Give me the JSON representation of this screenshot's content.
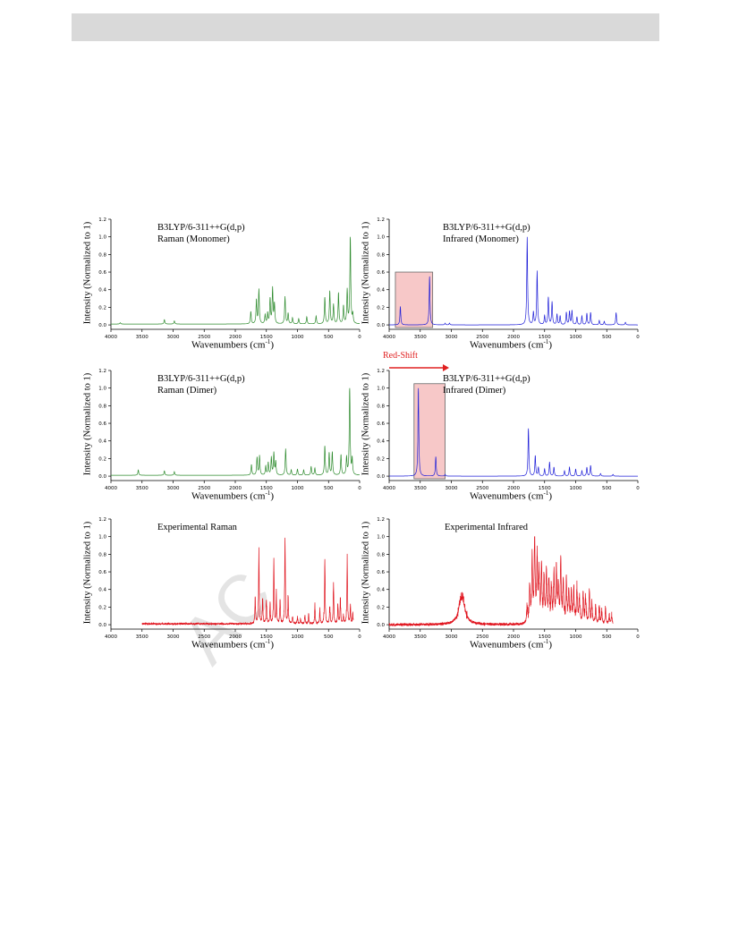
{
  "watermark": "AC",
  "chart_data": [
    {
      "id": "raman-monomer",
      "type": "line",
      "color": "#2e8b2e",
      "title_lines": [
        "B3LYP/6-311++G(d,p)",
        "Raman (Monomer)"
      ],
      "xlabel": "Wavenumbers (cm",
      "xlabel_sup": "-1",
      "xlabel_end": ")",
      "ylabel": "Intensity (Normalized to 1)",
      "xlim": [
        4000,
        0
      ],
      "ylim": [
        -0.05,
        1.2
      ],
      "xticks": [
        4000,
        3500,
        3000,
        2500,
        2000,
        1500,
        1000,
        500,
        0
      ],
      "yticks": [
        "0.0",
        "0.2",
        "0.4",
        "0.6",
        "0.8",
        "1.0",
        "1.2"
      ],
      "baseline": 0.01,
      "width": 8,
      "noise": 0,
      "peaks": [
        [
          3850,
          0.015
        ],
        [
          3140,
          0.05
        ],
        [
          2980,
          0.035
        ],
        [
          1750,
          0.14
        ],
        [
          1660,
          0.27
        ],
        [
          1620,
          0.39
        ],
        [
          1520,
          0.1
        ],
        [
          1480,
          0.12
        ],
        [
          1440,
          0.28
        ],
        [
          1400,
          0.4
        ],
        [
          1370,
          0.22
        ],
        [
          1200,
          0.31
        ],
        [
          1150,
          0.12
        ],
        [
          1080,
          0.07
        ],
        [
          980,
          0.06
        ],
        [
          850,
          0.08
        ],
        [
          700,
          0.09
        ],
        [
          560,
          0.3
        ],
        [
          480,
          0.37
        ],
        [
          420,
          0.22
        ],
        [
          340,
          0.35
        ],
        [
          260,
          0.2
        ],
        [
          200,
          0.38
        ],
        [
          150,
          1.0
        ],
        [
          110,
          0.1
        ]
      ]
    },
    {
      "id": "ir-monomer",
      "type": "line",
      "color": "#1f1fd8",
      "title_lines": [
        "B3LYP/6-311++G(d,p)",
        "Infrared (Monomer)"
      ],
      "xlabel": "Wavenumbers (cm",
      "xlabel_sup": "-1",
      "xlabel_end": ")",
      "ylabel": "Intensity (Normalized to 1)",
      "xlim": [
        4000,
        0
      ],
      "ylim": [
        -0.05,
        1.2
      ],
      "xticks": [
        4000,
        3500,
        3000,
        2500,
        2000,
        1500,
        1000,
        500,
        0
      ],
      "yticks": [
        "0.0",
        "0.2",
        "0.4",
        "0.6",
        "0.8",
        "1.0",
        "1.2"
      ],
      "baseline": 0.0,
      "width": 8,
      "noise": 0,
      "highlight": [
        3900,
        3300,
        0.6
      ],
      "peaks": [
        [
          3820,
          0.21
        ],
        [
          3350,
          0.55
        ],
        [
          3100,
          0.02
        ],
        [
          3030,
          0.02
        ],
        [
          1780,
          1.0
        ],
        [
          1680,
          0.14
        ],
        [
          1620,
          0.61
        ],
        [
          1500,
          0.1
        ],
        [
          1440,
          0.31
        ],
        [
          1380,
          0.26
        ],
        [
          1300,
          0.12
        ],
        [
          1250,
          0.1
        ],
        [
          1150,
          0.14
        ],
        [
          1100,
          0.15
        ],
        [
          1060,
          0.16
        ],
        [
          980,
          0.09
        ],
        [
          900,
          0.1
        ],
        [
          820,
          0.13
        ],
        [
          760,
          0.14
        ],
        [
          620,
          0.05
        ],
        [
          540,
          0.04
        ],
        [
          350,
          0.14
        ],
        [
          200,
          0.03
        ]
      ]
    },
    {
      "id": "raman-dimer",
      "type": "line",
      "color": "#2e8b2e",
      "title_lines": [
        "B3LYP/6-311++G(d,p)",
        "Raman (Dimer)"
      ],
      "xlabel": "Wavenumbers (cm",
      "xlabel_sup": "-1",
      "xlabel_end": ")",
      "ylabel": "Intensity (Normalized to 1)",
      "xlim": [
        4000,
        0
      ],
      "ylim": [
        -0.05,
        1.2
      ],
      "xticks": [
        4000,
        3500,
        3000,
        2500,
        2000,
        1500,
        1000,
        500,
        0
      ],
      "yticks": [
        "0.0",
        "0.2",
        "0.4",
        "0.6",
        "0.8",
        "1.0",
        "1.2"
      ],
      "baseline": 0.01,
      "width": 8,
      "noise": 0,
      "peaks": [
        [
          3560,
          0.06
        ],
        [
          3140,
          0.05
        ],
        [
          2980,
          0.04
        ],
        [
          1740,
          0.12
        ],
        [
          1650,
          0.2
        ],
        [
          1610,
          0.22
        ],
        [
          1510,
          0.1
        ],
        [
          1470,
          0.14
        ],
        [
          1420,
          0.2
        ],
        [
          1380,
          0.25
        ],
        [
          1350,
          0.15
        ],
        [
          1190,
          0.3
        ],
        [
          1100,
          0.06
        ],
        [
          1000,
          0.07
        ],
        [
          900,
          0.06
        ],
        [
          780,
          0.1
        ],
        [
          720,
          0.08
        ],
        [
          560,
          0.33
        ],
        [
          490,
          0.25
        ],
        [
          440,
          0.26
        ],
        [
          300,
          0.23
        ],
        [
          210,
          0.2
        ],
        [
          160,
          1.0
        ],
        [
          120,
          0.18
        ]
      ]
    },
    {
      "id": "ir-dimer",
      "type": "line",
      "color": "#1f1fd8",
      "title_lines": [
        "B3LYP/6-311++G(d,p)",
        "Infrared (Dimer)"
      ],
      "annotation": "Red-Shift",
      "xlabel": "Wavenumbers (cm",
      "xlabel_sup": "-1",
      "xlabel_end": ")",
      "ylabel": "Intensity (Normalized to 1)",
      "xlim": [
        4000,
        0
      ],
      "ylim": [
        -0.05,
        1.2
      ],
      "xticks": [
        4000,
        3500,
        3000,
        2500,
        2000,
        1500,
        1000,
        500,
        0
      ],
      "yticks": [
        "0.0",
        "0.2",
        "0.4",
        "0.6",
        "0.8",
        "1.0",
        "1.2"
      ],
      "baseline": 0.0,
      "width": 8,
      "noise": 0,
      "highlight": [
        3600,
        3100,
        1.05
      ],
      "peaks": [
        [
          3530,
          1.0
        ],
        [
          3250,
          0.22
        ],
        [
          3100,
          0.02
        ],
        [
          1760,
          0.54
        ],
        [
          1650,
          0.23
        ],
        [
          1600,
          0.1
        ],
        [
          1500,
          0.08
        ],
        [
          1420,
          0.16
        ],
        [
          1350,
          0.1
        ],
        [
          1180,
          0.06
        ],
        [
          1100,
          0.1
        ],
        [
          1000,
          0.08
        ],
        [
          900,
          0.06
        ],
        [
          820,
          0.1
        ],
        [
          760,
          0.12
        ],
        [
          600,
          0.03
        ],
        [
          400,
          0.02
        ]
      ]
    },
    {
      "id": "exp-raman",
      "type": "line",
      "color": "#e0141e",
      "title_lines": [
        "Experimental Raman"
      ],
      "xlabel": "Wavenumbers (cm",
      "xlabel_sup": "-1",
      "xlabel_end": ")",
      "ylabel": "Intensity (Normalized to 1)",
      "xlim": [
        4000,
        0
      ],
      "ylim": [
        -0.05,
        1.2
      ],
      "xticks": [
        4000,
        3500,
        3000,
        2500,
        2000,
        1500,
        1000,
        500,
        0
      ],
      "yticks": [
        "0.0",
        "0.2",
        "0.4",
        "0.6",
        "0.8",
        "1.0",
        "1.2"
      ],
      "baseline": 0.01,
      "width": 6,
      "noise": 0.01,
      "range": [
        3500,
        100
      ],
      "peaks": [
        [
          1680,
          0.33
        ],
        [
          1620,
          0.84
        ],
        [
          1560,
          0.28
        ],
        [
          1500,
          0.3
        ],
        [
          1440,
          0.2
        ],
        [
          1380,
          0.72
        ],
        [
          1340,
          0.36
        ],
        [
          1280,
          0.26
        ],
        [
          1200,
          1.0
        ],
        [
          1150,
          0.3
        ],
        [
          1080,
          0.1
        ],
        [
          1000,
          0.08
        ],
        [
          950,
          0.06
        ],
        [
          880,
          0.1
        ],
        [
          820,
          0.1
        ],
        [
          720,
          0.2
        ],
        [
          640,
          0.15
        ],
        [
          560,
          0.73
        ],
        [
          480,
          0.22
        ],
        [
          420,
          0.45
        ],
        [
          350,
          0.2
        ],
        [
          310,
          0.3
        ],
        [
          260,
          0.1
        ],
        [
          200,
          0.75
        ],
        [
          150,
          0.2
        ],
        [
          110,
          0.12
        ]
      ]
    },
    {
      "id": "exp-ir",
      "type": "line",
      "color": "#e0141e",
      "title_lines": [
        "Experimental Infrared"
      ],
      "xlabel": "Wavenumbers (cm",
      "xlabel_sup": "-1",
      "xlabel_end": ")",
      "ylabel": "Intensity (Normalized to 1)",
      "xlim": [
        4000,
        0
      ],
      "ylim": [
        -0.05,
        1.2
      ],
      "xticks": [
        4000,
        3500,
        3000,
        2500,
        2000,
        1500,
        1000,
        500,
        0
      ],
      "yticks": [
        "0.0",
        "0.2",
        "0.4",
        "0.6",
        "0.8",
        "1.0",
        "1.2"
      ],
      "baseline": 0.0,
      "width": 9,
      "noise": 0.015,
      "range": [
        4000,
        400
      ],
      "peaks": [
        [
          2830,
          0.33,
          55
        ],
        [
          1780,
          0.2
        ],
        [
          1740,
          0.45
        ],
        [
          1700,
          0.72
        ],
        [
          1660,
          1.0
        ],
        [
          1620,
          0.75
        ],
        [
          1590,
          0.55
        ],
        [
          1550,
          0.65
        ],
        [
          1510,
          0.5
        ],
        [
          1470,
          0.58
        ],
        [
          1430,
          0.5
        ],
        [
          1390,
          0.42
        ],
        [
          1350,
          0.55
        ],
        [
          1310,
          0.6
        ],
        [
          1280,
          0.4
        ],
        [
          1240,
          0.72
        ],
        [
          1200,
          0.5
        ],
        [
          1150,
          0.45
        ],
        [
          1110,
          0.4
        ],
        [
          1070,
          0.35
        ],
        [
          1030,
          0.38
        ],
        [
          980,
          0.4
        ],
        [
          940,
          0.3
        ],
        [
          880,
          0.32
        ],
        [
          840,
          0.3
        ],
        [
          780,
          0.35
        ],
        [
          740,
          0.25
        ],
        [
          680,
          0.18
        ],
        [
          620,
          0.2
        ],
        [
          580,
          0.12
        ],
        [
          520,
          0.15
        ],
        [
          460,
          0.1
        ],
        [
          420,
          0.1
        ]
      ]
    }
  ]
}
